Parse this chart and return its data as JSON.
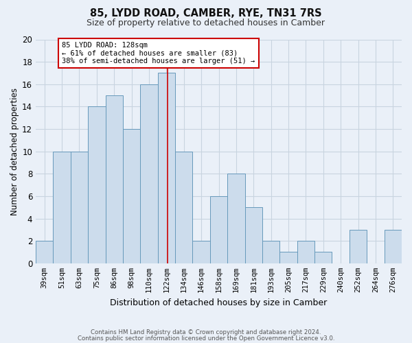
{
  "title1": "85, LYDD ROAD, CAMBER, RYE, TN31 7RS",
  "title2": "Size of property relative to detached houses in Camber",
  "xlabel": "Distribution of detached houses by size in Camber",
  "ylabel": "Number of detached properties",
  "categories": [
    "39sqm",
    "51sqm",
    "63sqm",
    "75sqm",
    "86sqm",
    "98sqm",
    "110sqm",
    "122sqm",
    "134sqm",
    "146sqm",
    "158sqm",
    "169sqm",
    "181sqm",
    "193sqm",
    "205sqm",
    "217sqm",
    "229sqm",
    "240sqm",
    "252sqm",
    "264sqm",
    "276sqm"
  ],
  "values": [
    2,
    10,
    10,
    14,
    15,
    12,
    16,
    17,
    10,
    2,
    6,
    8,
    5,
    2,
    1,
    2,
    1,
    0,
    3,
    0,
    3
  ],
  "bar_color": "#ccdcec",
  "bar_edge_color": "#6699bb",
  "annotation_text": "85 LYDD ROAD: 128sqm\n← 61% of detached houses are smaller (83)\n38% of semi-detached houses are larger (51) →",
  "annotation_box_color": "#ffffff",
  "annotation_box_edge_color": "#cc0000",
  "vline_color": "#cc0000",
  "grid_color": "#c8d4e0",
  "background_color": "#eaf0f8",
  "ylim": [
    0,
    20
  ],
  "yticks": [
    0,
    2,
    4,
    6,
    8,
    10,
    12,
    14,
    16,
    18,
    20
  ],
  "footer1": "Contains HM Land Registry data © Crown copyright and database right 2024.",
  "footer2": "Contains public sector information licensed under the Open Government Licence v3.0.",
  "title1_fontsize": 10.5,
  "title2_fontsize": 9,
  "ylabel_fontsize": 8.5,
  "xlabel_fontsize": 9,
  "tick_fontsize": 7.5,
  "annotation_fontsize": 7.5
}
